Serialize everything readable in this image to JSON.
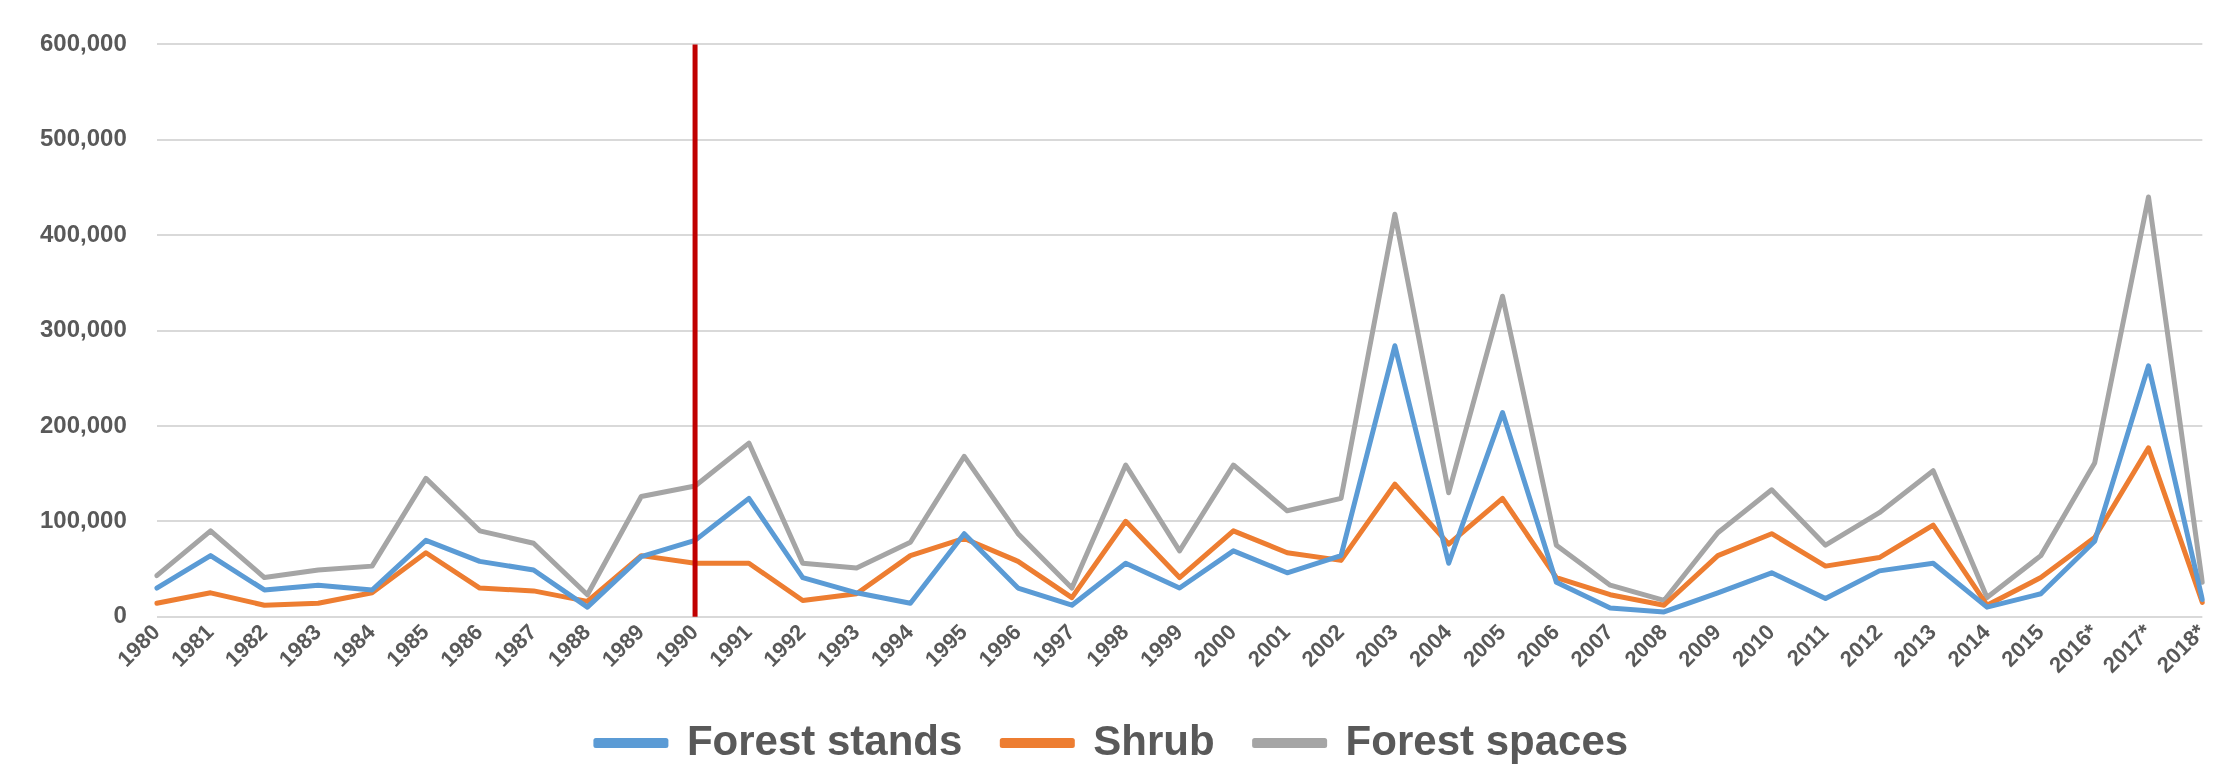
{
  "chart_data": {
    "type": "line",
    "categories": [
      "1980",
      "1981",
      "1982",
      "1983",
      "1984",
      "1985",
      "1986",
      "1987",
      "1988",
      "1989",
      "1990",
      "1991",
      "1992",
      "1993",
      "1994",
      "1995",
      "1996",
      "1997",
      "1998",
      "1999",
      "2000",
      "2001",
      "2002",
      "2003",
      "2004",
      "2005",
      "2006",
      "2007",
      "2008",
      "2009",
      "2010",
      "2011",
      "2012",
      "2013",
      "2014",
      "2015",
      "2016*",
      "2017*",
      "2018*"
    ],
    "series": [
      {
        "name": "Forest stands",
        "color": "#5b9bd5",
        "values": [
          30000,
          64000,
          28000,
          33000,
          28000,
          80000,
          58000,
          49000,
          10000,
          63000,
          80000,
          124000,
          41000,
          25000,
          14000,
          87000,
          30000,
          12000,
          56000,
          30000,
          69000,
          46000,
          64000,
          284000,
          56000,
          214000,
          36000,
          9000,
          5000,
          25000,
          46000,
          19000,
          48000,
          56000,
          10000,
          24000,
          79000,
          263000,
          18000
        ]
      },
      {
        "name": "Shrub",
        "color": "#ed7d31",
        "values": [
          14000,
          25000,
          12000,
          14000,
          25000,
          67000,
          30000,
          27000,
          16000,
          64000,
          56000,
          56000,
          17000,
          24000,
          64000,
          82000,
          58000,
          20000,
          100000,
          41000,
          90000,
          67000,
          59000,
          139000,
          76000,
          124000,
          41000,
          23000,
          12000,
          64000,
          87000,
          53000,
          62000,
          96000,
          12000,
          41000,
          83000,
          177000,
          15000
        ]
      },
      {
        "name": "Forest spaces",
        "color": "#a5a5a5",
        "values": [
          43000,
          90000,
          41000,
          49000,
          53000,
          145000,
          90000,
          77000,
          23000,
          126000,
          137000,
          182000,
          56000,
          51000,
          78000,
          168000,
          87000,
          30000,
          159000,
          69000,
          159000,
          111000,
          124000,
          422000,
          130000,
          336000,
          75000,
          33000,
          17000,
          88000,
          133000,
          75000,
          109000,
          153000,
          20000,
          64000,
          161000,
          440000,
          36000
        ]
      }
    ],
    "ylim": [
      0,
      600000
    ],
    "yticks": [
      0,
      {
        "value": 100000,
        "label": "100,000"
      },
      {
        "value": 200000,
        "label": "200,000"
      },
      {
        "value": 300000,
        "label": "300,000"
      },
      {
        "value": 400000,
        "label": "400,000"
      },
      {
        "value": 500000,
        "label": "500,000"
      },
      {
        "value": 600000,
        "label": "600,000"
      }
    ],
    "grid": "y",
    "legend": "bottom",
    "marker": "none",
    "line_style": "solid",
    "ref_lines": [
      {
        "axis": "x",
        "value": "1990",
        "color": "#c00000"
      }
    ]
  }
}
